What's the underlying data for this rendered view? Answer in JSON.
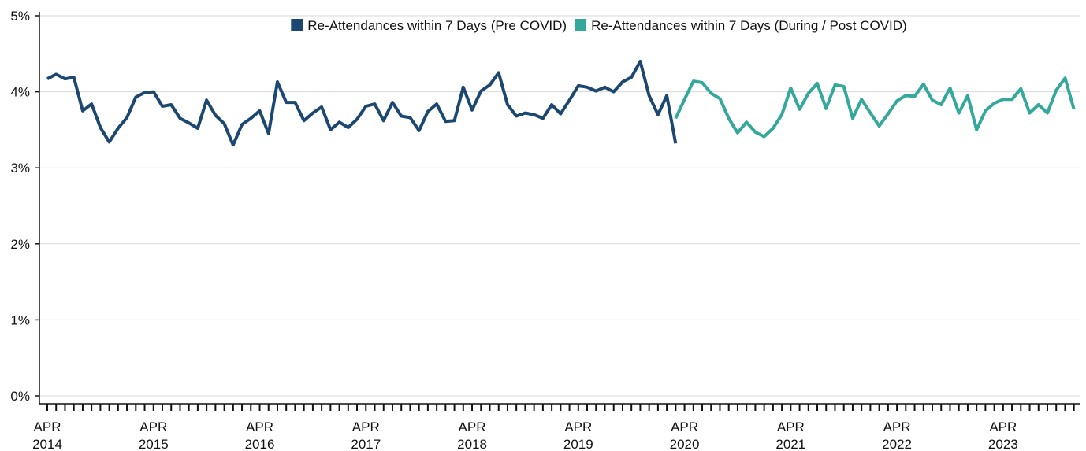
{
  "chart_data": {
    "type": "line",
    "categories": [
      "APR 2014",
      null,
      null,
      null,
      null,
      null,
      null,
      null,
      null,
      null,
      null,
      null,
      "APR 2015",
      null,
      null,
      null,
      null,
      null,
      null,
      null,
      null,
      null,
      null,
      null,
      "APR 2016",
      null,
      null,
      null,
      null,
      null,
      null,
      null,
      null,
      null,
      null,
      null,
      "APR 2017",
      null,
      null,
      null,
      null,
      null,
      null,
      null,
      null,
      null,
      null,
      null,
      "APR 2018",
      null,
      null,
      null,
      null,
      null,
      null,
      null,
      null,
      null,
      null,
      null,
      "APR 2019",
      null,
      null,
      null,
      null,
      null,
      null,
      null,
      null,
      null,
      null,
      null,
      "APR 2020",
      null,
      null,
      null,
      null,
      null,
      null,
      null,
      null,
      null,
      null,
      null,
      "APR 2021",
      null,
      null,
      null,
      null,
      null,
      null,
      null,
      null,
      null,
      null,
      null,
      "APR 2022",
      null,
      null,
      null,
      null,
      null,
      null,
      null,
      null,
      null,
      null,
      null,
      "APR 2023",
      null,
      null,
      null,
      null,
      null,
      null,
      null,
      null
    ],
    "series": [
      {
        "name": "Re-Attendances within 7 Days (Pre COVID)",
        "color": "#1c4770",
        "values": [
          4.17,
          4.23,
          4.17,
          4.19,
          3.75,
          3.84,
          3.53,
          3.34,
          3.52,
          3.66,
          3.93,
          3.99,
          4.0,
          3.81,
          3.83,
          3.65,
          3.59,
          3.52,
          3.89,
          3.69,
          3.58,
          3.3,
          3.57,
          3.65,
          3.75,
          3.45,
          4.13,
          3.86,
          3.86,
          3.62,
          3.72,
          3.8,
          3.5,
          3.6,
          3.53,
          3.64,
          3.81,
          3.84,
          3.62,
          3.86,
          3.68,
          3.66,
          3.49,
          3.74,
          3.84,
          3.61,
          3.62,
          4.06,
          3.76,
          4.01,
          4.09,
          4.25,
          3.83,
          3.68,
          3.72,
          3.7,
          3.65,
          3.83,
          3.71,
          3.89,
          4.08,
          4.06,
          4.01,
          4.06,
          4.0,
          4.13,
          4.19,
          4.4,
          3.95,
          3.7,
          3.95,
          3.32,
          null,
          null,
          null,
          null,
          null,
          null,
          null,
          null,
          null,
          null,
          null,
          null,
          null,
          null,
          null,
          null,
          null,
          null,
          null,
          null,
          null,
          null,
          null,
          null,
          null,
          null,
          null,
          null,
          null,
          null,
          null,
          null,
          null,
          null,
          null,
          null,
          null,
          null,
          null,
          null,
          null,
          null,
          null,
          null,
          null
        ]
      },
      {
        "name": "Re-Attendances within 7 Days (During / Post COVID)",
        "color": "#33a89b",
        "values": [
          null,
          null,
          null,
          null,
          null,
          null,
          null,
          null,
          null,
          null,
          null,
          null,
          null,
          null,
          null,
          null,
          null,
          null,
          null,
          null,
          null,
          null,
          null,
          null,
          null,
          null,
          null,
          null,
          null,
          null,
          null,
          null,
          null,
          null,
          null,
          null,
          null,
          null,
          null,
          null,
          null,
          null,
          null,
          null,
          null,
          null,
          null,
          null,
          null,
          null,
          null,
          null,
          null,
          null,
          null,
          null,
          null,
          null,
          null,
          null,
          null,
          null,
          null,
          null,
          null,
          null,
          null,
          null,
          null,
          null,
          null,
          3.65,
          3.9,
          4.14,
          4.12,
          3.98,
          3.91,
          3.65,
          3.46,
          3.6,
          3.47,
          3.41,
          3.52,
          3.7,
          4.05,
          3.77,
          3.98,
          4.11,
          3.78,
          4.09,
          4.07,
          3.65,
          3.9,
          3.72,
          3.55,
          3.71,
          3.88,
          3.95,
          3.94,
          4.1,
          3.89,
          3.83,
          4.05,
          3.72,
          3.95,
          3.5,
          3.75,
          3.85,
          3.9,
          3.9,
          4.04,
          3.72,
          3.83,
          3.72,
          4.02,
          4.18,
          3.77
        ]
      }
    ],
    "ylim": [
      0,
      5
    ],
    "yticks": [
      {
        "value": 0,
        "label": "0%"
      },
      {
        "value": 1,
        "label": "1%"
      },
      {
        "value": 2,
        "label": "2%"
      },
      {
        "value": 3,
        "label": "3%"
      },
      {
        "value": 4,
        "label": "4%"
      },
      {
        "value": 5,
        "label": "5%"
      }
    ],
    "grid": true,
    "legend": "top"
  }
}
